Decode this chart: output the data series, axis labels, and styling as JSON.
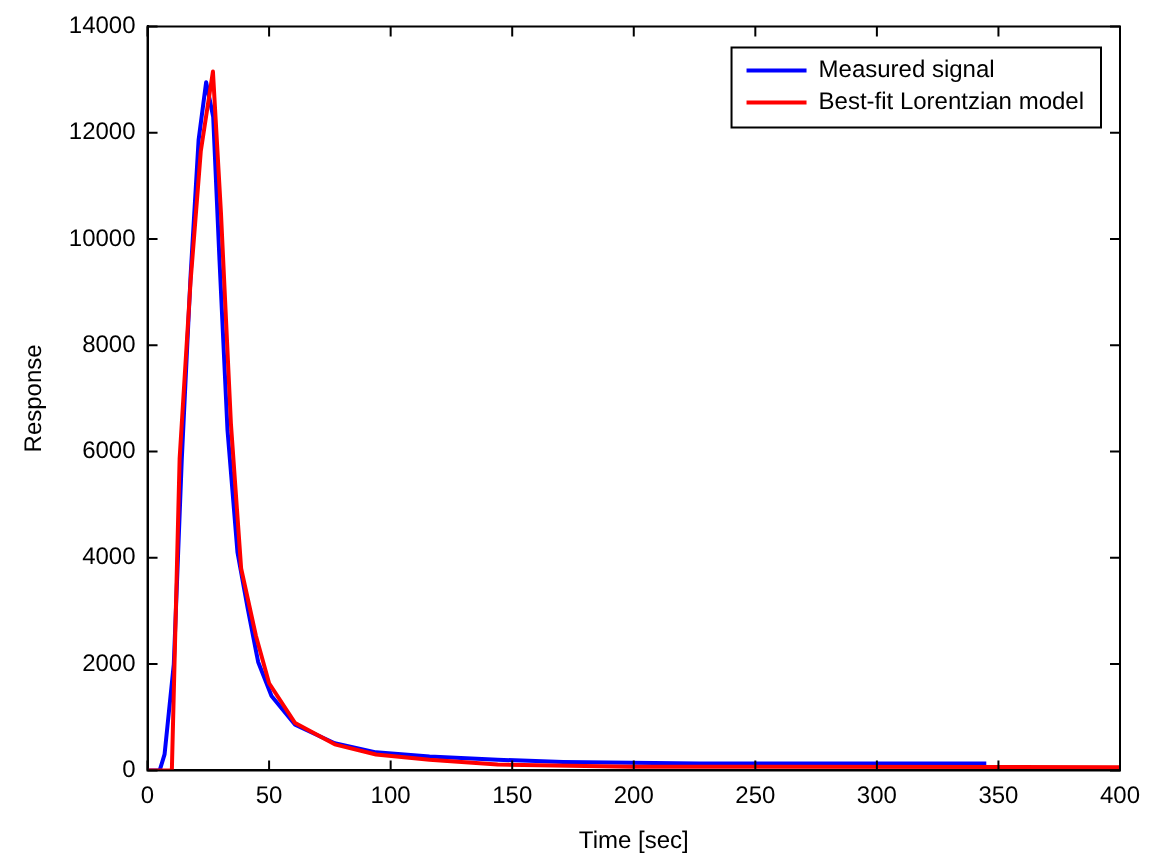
{
  "chart_data": {
    "type": "line",
    "xlabel": "Time [sec]",
    "ylabel": "Response",
    "xlim": [
      0,
      400
    ],
    "xticks": [
      0,
      50,
      100,
      150,
      200,
      250,
      300,
      350,
      400
    ],
    "ylim": [
      0,
      14000
    ],
    "yticks": [
      0,
      2000,
      4000,
      6000,
      8000,
      10000,
      12000,
      14000
    ],
    "grid": false,
    "legend": "top right",
    "marker": "none",
    "line_style": "solid",
    "series": [
      {
        "name": "Measured signal",
        "color": "#0000ff",
        "x": [
          0,
          5,
          7,
          10.8,
          14.1,
          17.7,
          21,
          24.1,
          27,
          29.6,
          32.9,
          37,
          41.2,
          45.5,
          51,
          60.7,
          77,
          94,
          116,
          144,
          171,
          227,
          345
        ],
        "values": [
          0,
          0,
          300,
          2000,
          5870,
          9300,
          11860,
          12950,
          12300,
          9600,
          6400,
          4100,
          3050,
          2040,
          1400,
          860,
          510,
          340,
          260,
          200,
          160,
          130,
          130
        ]
      },
      {
        "name": "Best-fit Lorentzian model",
        "color": "#ff0000",
        "x": [
          0,
          10,
          13.2,
          17.7,
          21.9,
          26.9,
          30.2,
          34.3,
          38.5,
          44.6,
          50,
          60.7,
          77,
          94,
          116,
          144,
          199,
          400
        ],
        "values": [
          0,
          0,
          5870,
          9200,
          11650,
          13150,
          10490,
          6520,
          3800,
          2530,
          1640,
          890,
          490,
          300,
          200,
          110,
          70,
          60
        ]
      }
    ]
  }
}
